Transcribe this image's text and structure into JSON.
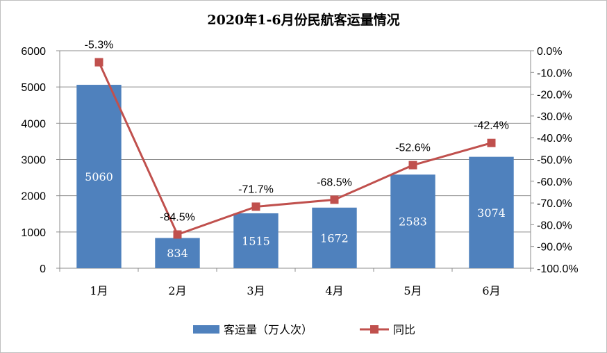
{
  "chart_data": {
    "type": "bar",
    "title": "2020年1-6月份民航客运量情况",
    "categories": [
      "1月",
      "2月",
      "3月",
      "4月",
      "5月",
      "6月"
    ],
    "series": [
      {
        "name": "客运量（万人次）",
        "type": "bar",
        "axis": "left",
        "color": "#4f81bd",
        "values": [
          5060,
          834,
          1515,
          1672,
          2583,
          3074
        ],
        "labels": [
          "5060",
          "834",
          "1515",
          "1672",
          "2583",
          "3074"
        ]
      },
      {
        "name": "同比",
        "type": "line",
        "axis": "right",
        "color": "#c0504d",
        "values": [
          -5.3,
          -84.5,
          -71.7,
          -68.5,
          -52.6,
          -42.4
        ],
        "labels": [
          "-5.3%",
          "-84.5%",
          "-71.7%",
          "-68.5%",
          "-52.6%",
          "-42.4%"
        ]
      }
    ],
    "y_left": {
      "ylim": [
        0,
        6000
      ],
      "ticks": [
        "0",
        "1000",
        "2000",
        "3000",
        "4000",
        "5000",
        "6000"
      ]
    },
    "y_right": {
      "ylim": [
        -100,
        0
      ],
      "ticks": [
        "0.0%",
        "-10.0%",
        "-20.0%",
        "-30.0%",
        "-40.0%",
        "-50.0%",
        "-60.0%",
        "-70.0%",
        "-80.0%",
        "-90.0%",
        "-100.0%"
      ]
    },
    "grid": true,
    "legend": "bottom"
  }
}
